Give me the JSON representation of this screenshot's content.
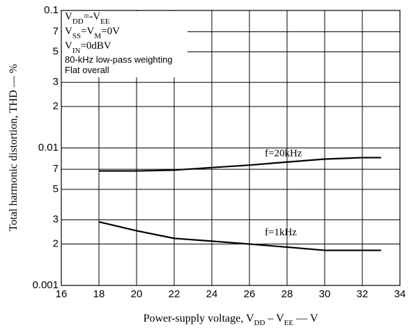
{
  "chart_data": {
    "type": "line",
    "xlabel": [
      {
        "text": "Power-supply voltage, V"
      },
      {
        "sub": "DD"
      },
      {
        "text": " – V"
      },
      {
        "sub": "EE"
      },
      {
        "text": " — V"
      }
    ],
    "ylabel": [
      {
        "text": "Total harmonic distortion, THD — %"
      }
    ],
    "notes": [
      [
        {
          "text": "V"
        },
        {
          "sub": "DD"
        },
        {
          "text": "=-V"
        },
        {
          "sub": "EE"
        }
      ],
      [
        {
          "text": "V"
        },
        {
          "sub": "SS"
        },
        {
          "text": "=V"
        },
        {
          "sub": "M"
        },
        {
          "text": "=0V"
        }
      ],
      [
        {
          "text": "V"
        },
        {
          "sub": "IN"
        },
        {
          "text": "=0dBV"
        }
      ],
      [
        {
          "text": "80-kHz low-pass weighting"
        }
      ],
      [
        {
          "text": "Flat overall"
        }
      ]
    ],
    "x": [
      18,
      20,
      22,
      24,
      26,
      28,
      30,
      32,
      33
    ],
    "series": [
      {
        "name": "f=20kHz",
        "color": "#000000",
        "values": [
          0.0068,
          0.0068,
          0.0069,
          0.0072,
          0.0075,
          0.0079,
          0.0083,
          0.0085,
          0.0085
        ]
      },
      {
        "name": "f=1kHz",
        "color": "#000000",
        "values": [
          0.0029,
          0.0025,
          0.0022,
          0.0021,
          0.002,
          0.0019,
          0.0018,
          0.0018,
          0.0018
        ]
      }
    ],
    "xlim": [
      16,
      34
    ],
    "xticks": [
      16,
      18,
      20,
      22,
      24,
      26,
      28,
      30,
      32,
      34
    ],
    "ylim": [
      0.001,
      0.1
    ],
    "yscale": "log",
    "yticks": [
      0.001,
      {
        "value": 0.002,
        "label": "2"
      },
      {
        "value": 0.003,
        "label": "3"
      },
      {
        "value": 0.005,
        "label": "5"
      },
      {
        "value": 0.007,
        "label": "7"
      },
      0.01,
      {
        "value": 0.02,
        "label": "2"
      },
      {
        "value": 0.03,
        "label": "3"
      },
      {
        "value": 0.05,
        "label": "5"
      },
      {
        "value": 0.07,
        "label": "7"
      },
      0.1
    ],
    "grid": true
  }
}
